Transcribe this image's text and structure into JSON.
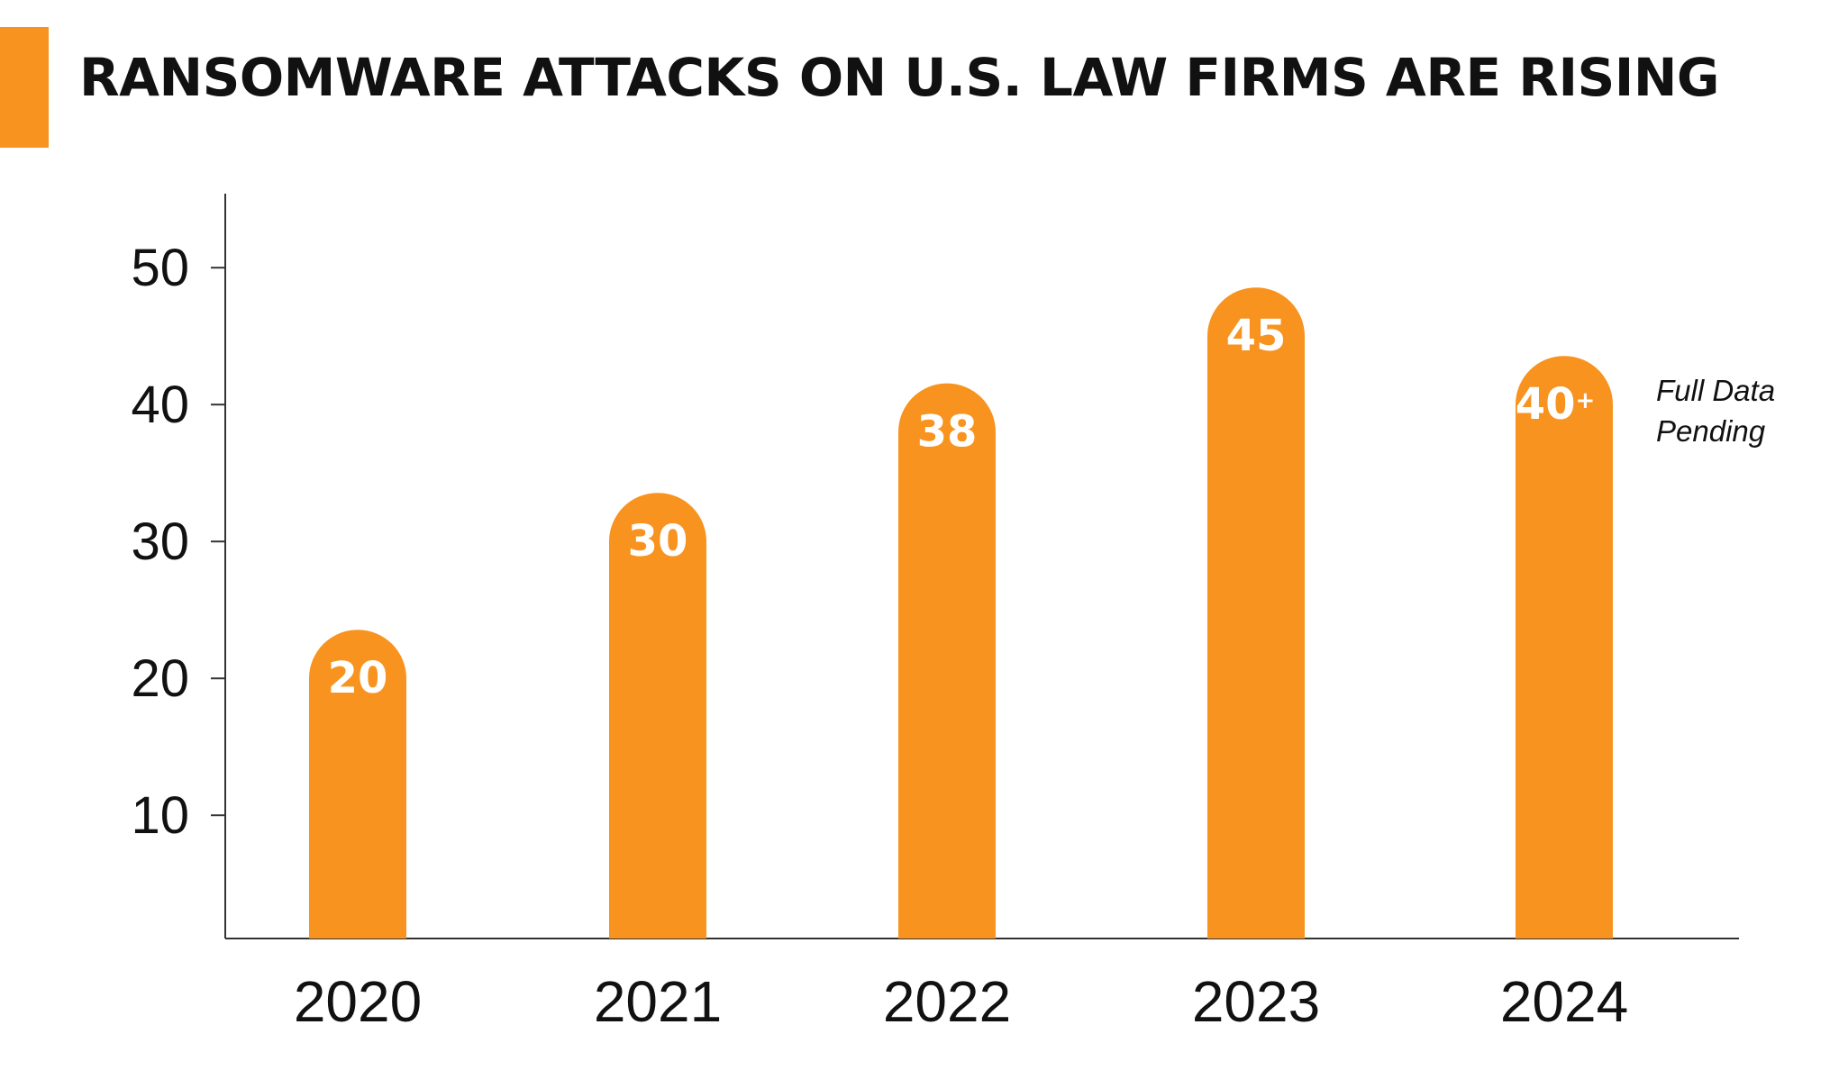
{
  "chart_data": {
    "type": "bar",
    "title": "RANSOMWARE ATTACKS ON U.S. LAW FIRMS ARE RISING",
    "xlabel": "",
    "ylabel": "",
    "categories": [
      "2020",
      "2021",
      "2022",
      "2023",
      "2024"
    ],
    "values": [
      20,
      30,
      38,
      45,
      40
    ],
    "value_labels": [
      "20",
      "30",
      "38",
      "45",
      "40"
    ],
    "value_suffixes": [
      "",
      "",
      "",
      "",
      "+"
    ],
    "yticks": [
      10,
      20,
      30,
      40,
      50
    ],
    "ylim": [
      1,
      55
    ],
    "grid": false,
    "legend": "none",
    "annotations": [
      {
        "category": "2024",
        "lines": [
          "Full Data",
          "Pending"
        ]
      }
    ],
    "colors": {
      "bar": "#f7931e",
      "accent": "#f7931e",
      "axis": "#333333",
      "text": "#111111"
    }
  }
}
